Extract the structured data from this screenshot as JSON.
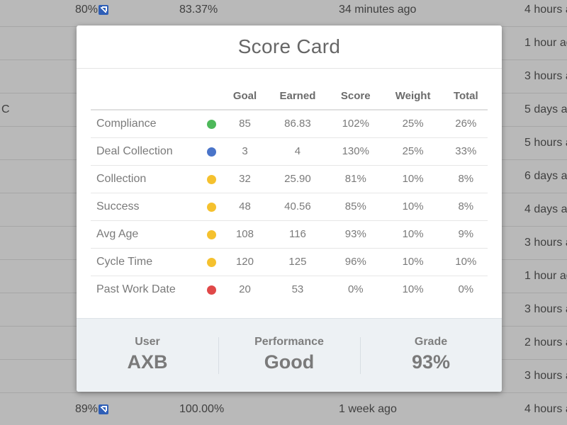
{
  "background_rows": [
    {
      "c0": "",
      "c1": "80%",
      "has_link": true,
      "c2": "83.37%",
      "c3": "34 minutes ago",
      "c4": "4 hours a"
    },
    {
      "c0": "",
      "c1": "",
      "has_link": false,
      "c2": "",
      "c3": "",
      "c4": "1 hour ag"
    },
    {
      "c0": "",
      "c1": "",
      "has_link": false,
      "c2": "",
      "c3": "",
      "c4": "3 hours a"
    },
    {
      "c0": "C",
      "c1": "",
      "has_link": false,
      "c2": "",
      "c3": "",
      "c4": "5 days a"
    },
    {
      "c0": "",
      "c1": "",
      "has_link": false,
      "c2": "",
      "c3": "",
      "c4": "5 hours a"
    },
    {
      "c0": "",
      "c1": "",
      "has_link": false,
      "c2": "",
      "c3": "",
      "c4": "6 days a"
    },
    {
      "c0": "",
      "c1": "",
      "has_link": false,
      "c2": "",
      "c3": "",
      "c4": "4 days a"
    },
    {
      "c0": "",
      "c1": "",
      "has_link": false,
      "c2": "",
      "c3": "",
      "c4": "3 hours a"
    },
    {
      "c0": "",
      "c1": "",
      "has_link": false,
      "c2": "",
      "c3": "",
      "c4": "1 hour ag"
    },
    {
      "c0": "",
      "c1": "",
      "has_link": false,
      "c2": "",
      "c3": "",
      "c4": "3 hours a"
    },
    {
      "c0": "",
      "c1": "",
      "has_link": false,
      "c2": "",
      "c3": "",
      "c4": "2 hours a"
    },
    {
      "c0": "",
      "c1": "",
      "has_link": false,
      "c2": "",
      "c3": "",
      "c4": "3 hours a"
    },
    {
      "c0": "",
      "c1": "89%",
      "has_link": true,
      "c2": "100.00%",
      "c3": "1 week ago",
      "c4": "4 hours a"
    }
  ],
  "modal": {
    "title": "Score Card",
    "columns": [
      "",
      "",
      "Goal",
      "Earned",
      "Score",
      "Weight",
      "Total"
    ],
    "rows": [
      {
        "name": "Compliance",
        "status": "green",
        "goal": "85",
        "earned": "86.83",
        "score": "102%",
        "weight": "25%",
        "total": "26%"
      },
      {
        "name": "Deal Collection",
        "status": "blue",
        "goal": "3",
        "earned": "4",
        "score": "130%",
        "weight": "25%",
        "total": "33%"
      },
      {
        "name": "Collection",
        "status": "yellow",
        "goal": "32",
        "earned": "25.90",
        "score": "81%",
        "weight": "10%",
        "total": "8%"
      },
      {
        "name": "Success",
        "status": "yellow",
        "goal": "48",
        "earned": "40.56",
        "score": "85%",
        "weight": "10%",
        "total": "8%"
      },
      {
        "name": "Avg Age",
        "status": "yellow",
        "goal": "108",
        "earned": "116",
        "score": "93%",
        "weight": "10%",
        "total": "9%"
      },
      {
        "name": "Cycle Time",
        "status": "yellow",
        "goal": "120",
        "earned": "125",
        "score": "96%",
        "weight": "10%",
        "total": "10%"
      },
      {
        "name": "Past Work Date",
        "status": "red",
        "goal": "20",
        "earned": "53",
        "score": "0%",
        "weight": "10%",
        "total": "0%"
      }
    ],
    "summary": {
      "user_label": "User",
      "user_value": "AXB",
      "performance_label": "Performance",
      "performance_value": "Good",
      "grade_label": "Grade",
      "grade_value": "93%"
    }
  },
  "colors": {
    "green": "#4db85a",
    "blue": "#4a74c9",
    "yellow": "#f5c12e",
    "red": "#e04848"
  }
}
